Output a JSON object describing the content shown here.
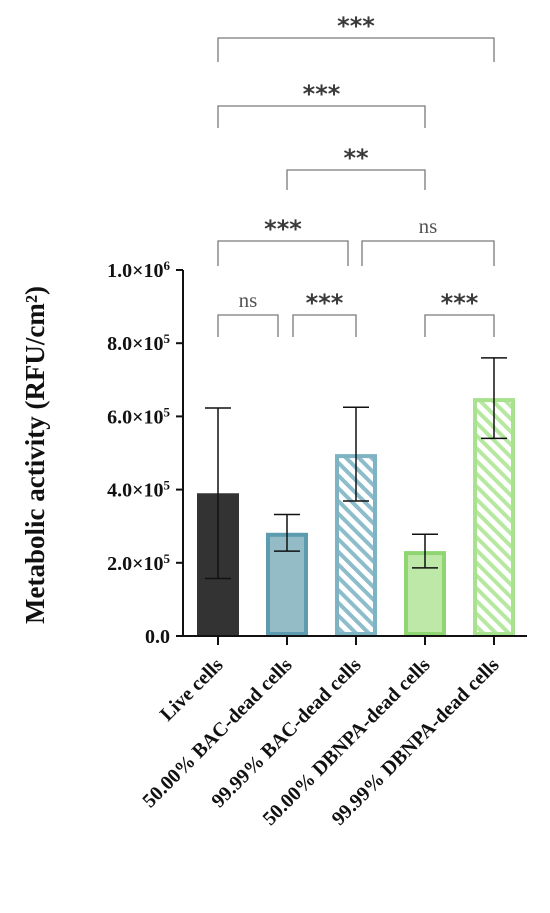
{
  "chart_data": {
    "type": "bar",
    "categories": [
      "Live cells",
      "50.00% BAC-dead cells",
      "99.99% BAC-dead cells",
      "50.00% DBNPA-dead cells",
      "99.99% DBNPA-dead cells"
    ],
    "values": [
      390000,
      282000,
      497000,
      232000,
      650000
    ],
    "errors": [
      233000,
      50000,
      128000,
      46000,
      110000
    ],
    "ylabel": "Metabolic activity (RFU/cm²)",
    "ylim": [
      0,
      1000000
    ],
    "yticks": [
      {
        "value": 0,
        "label": "0.0"
      },
      {
        "value": 200000,
        "label": "2.0×10",
        "exp": "5"
      },
      {
        "value": 400000,
        "label": "4.0×10",
        "exp": "5"
      },
      {
        "value": 600000,
        "label": "6.0×10",
        "exp": "5"
      },
      {
        "value": 800000,
        "label": "8.0×10",
        "exp": "5"
      },
      {
        "value": 1000000,
        "label": "1.0×10",
        "exp": "6"
      }
    ],
    "bar_styles": [
      {
        "fill": "#333333",
        "stroke": "#222222",
        "hatch": false
      },
      {
        "fill": "#93bcc7",
        "stroke": "#5d9cae",
        "hatch": false
      },
      {
        "fill": "#ffffff",
        "stroke": "#7db3c2",
        "hatch": true
      },
      {
        "fill": "#bde8a8",
        "stroke": "#8fd672",
        "hatch": false
      },
      {
        "fill": "#ffffff",
        "stroke": "#a8e28f",
        "hatch": true
      }
    ],
    "comparisons": [
      {
        "a": 0,
        "b": 4,
        "label": "***"
      },
      {
        "a": 0,
        "b": 3,
        "label": "***"
      },
      {
        "a": 1,
        "b": 3,
        "label": "**"
      },
      {
        "a": 0,
        "b": 2,
        "label": "***"
      },
      {
        "a": 2,
        "b": 4,
        "label": "ns"
      },
      {
        "a": 0,
        "b": 1,
        "label": "ns"
      },
      {
        "a": 1,
        "b": 2,
        "label": "***"
      },
      {
        "a": 3,
        "b": 4,
        "label": "***"
      }
    ],
    "grid": false,
    "legend": "none"
  }
}
